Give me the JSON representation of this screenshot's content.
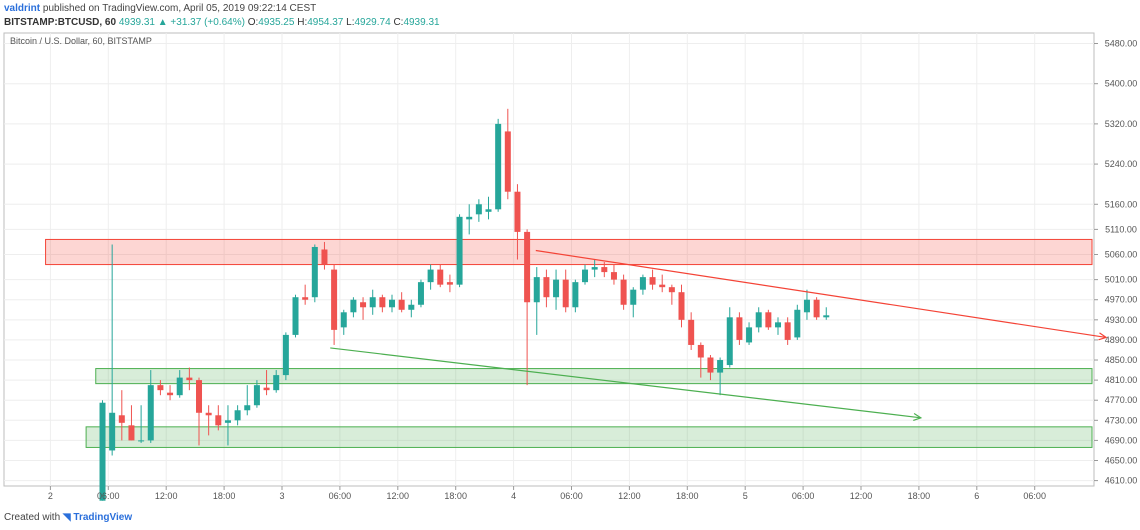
{
  "header": {
    "user": "valdrint",
    "published": "published on TradingView.com, April 05, 2019 09:22:14 CEST",
    "symbol": "BITSTAMP:BTCUSD, 60",
    "change": "4939.31 ▲ +31.37 (+0.64%)",
    "o_label": "O:",
    "o": "4935.25",
    "h_label": "H:",
    "h": "4954.37",
    "l_label": "L:",
    "l": "4929.74",
    "c_label": "C:",
    "c": "4939.31"
  },
  "footer": {
    "created": "Created with",
    "brand": "TradingView"
  },
  "colors": {
    "up": "#26a69a",
    "down": "#ef5350",
    "resistance": "#f44336",
    "support": "#4caf50"
  },
  "chart_data": {
    "type": "candlestick",
    "title": "Bitcoin / U.S. Dollar, 60, BITSTAMP",
    "ylim": [
      4570,
      5500
    ],
    "y_ticks": [
      5480,
      5400,
      5320,
      5240,
      5160,
      5110,
      5060,
      5010,
      4970,
      4930,
      4890,
      4850,
      4810,
      4770,
      4730,
      4690,
      4650,
      4610
    ],
    "y_tick_labels": [
      "5480.00",
      "5400.00",
      "5320.00",
      "5240.00",
      "5160.00",
      "5110.00",
      "5060.00",
      "5010.00",
      "4970.00",
      "4930.00",
      "4890.00",
      "4850.00",
      "4810.00",
      "4770.00",
      "4730.00",
      "4690.00",
      "4650.00",
      "4610.00"
    ],
    "x_ticks": [
      {
        "label": "2",
        "h": -24
      },
      {
        "label": "06:00",
        "h": -18
      },
      {
        "label": "12:00",
        "h": -12
      },
      {
        "label": "18:00",
        "h": -6
      },
      {
        "label": "3",
        "h": 0
      },
      {
        "label": "06:00",
        "h": 6
      },
      {
        "label": "12:00",
        "h": 12
      },
      {
        "label": "18:00",
        "h": 18
      },
      {
        "label": "4",
        "h": 24
      },
      {
        "label": "06:00",
        "h": 30
      },
      {
        "label": "12:00",
        "h": 36
      },
      {
        "label": "18:00",
        "h": 42
      },
      {
        "label": "5",
        "h": 48
      },
      {
        "label": "06:00",
        "h": 54
      },
      {
        "label": "12:00",
        "h": 60
      },
      {
        "label": "18:00",
        "h": 66
      },
      {
        "label": "6",
        "h": 72
      },
      {
        "label": "06:00",
        "h": 78
      }
    ],
    "candles": [
      {
        "h": -18.6,
        "o": 4570,
        "hi": 4770,
        "lo": 4570,
        "c": 4765
      },
      {
        "h": -17.6,
        "o": 4670,
        "hi": 5080,
        "lo": 4660,
        "c": 4745
      },
      {
        "h": -16.6,
        "o": 4740,
        "hi": 4790,
        "lo": 4690,
        "c": 4725
      },
      {
        "h": -15.6,
        "o": 4720,
        "hi": 4760,
        "lo": 4690,
        "c": 4690
      },
      {
        "h": -14.6,
        "o": 4690,
        "hi": 4760,
        "lo": 4685,
        "c": 4690
      },
      {
        "h": -13.6,
        "o": 4690,
        "hi": 4830,
        "lo": 4685,
        "c": 4800
      },
      {
        "h": -12.6,
        "o": 4800,
        "hi": 4810,
        "lo": 4780,
        "c": 4790
      },
      {
        "h": -11.6,
        "o": 4785,
        "hi": 4800,
        "lo": 4770,
        "c": 4780
      },
      {
        "h": -10.6,
        "o": 4780,
        "hi": 4830,
        "lo": 4775,
        "c": 4815
      },
      {
        "h": -9.6,
        "o": 4815,
        "hi": 4835,
        "lo": 4790,
        "c": 4810
      },
      {
        "h": -8.6,
        "o": 4810,
        "hi": 4815,
        "lo": 4680,
        "c": 4745
      },
      {
        "h": -7.6,
        "o": 4745,
        "hi": 4760,
        "lo": 4700,
        "c": 4740
      },
      {
        "h": -6.6,
        "o": 4740,
        "hi": 4760,
        "lo": 4710,
        "c": 4720
      },
      {
        "h": -5.6,
        "o": 4725,
        "hi": 4760,
        "lo": 4680,
        "c": 4730
      },
      {
        "h": -4.6,
        "o": 4730,
        "hi": 4760,
        "lo": 4720,
        "c": 4750
      },
      {
        "h": -3.6,
        "o": 4750,
        "hi": 4800,
        "lo": 4740,
        "c": 4760
      },
      {
        "h": -2.6,
        "o": 4760,
        "hi": 4810,
        "lo": 4755,
        "c": 4800
      },
      {
        "h": -1.6,
        "o": 4795,
        "hi": 4830,
        "lo": 4780,
        "c": 4790
      },
      {
        "h": -0.6,
        "o": 4790,
        "hi": 4830,
        "lo": 4785,
        "c": 4820
      },
      {
        "h": 0.4,
        "o": 4820,
        "hi": 4905,
        "lo": 4810,
        "c": 4900
      },
      {
        "h": 1.4,
        "o": 4900,
        "hi": 4980,
        "lo": 4895,
        "c": 4975
      },
      {
        "h": 2.4,
        "o": 4975,
        "hi": 5000,
        "lo": 4960,
        "c": 4970
      },
      {
        "h": 3.4,
        "o": 4975,
        "hi": 5080,
        "lo": 4965,
        "c": 5075
      },
      {
        "h": 4.4,
        "o": 5070,
        "hi": 5085,
        "lo": 5030,
        "c": 5040
      },
      {
        "h": 5.4,
        "o": 5030,
        "hi": 5040,
        "lo": 4880,
        "c": 4910
      },
      {
        "h": 6.4,
        "o": 4915,
        "hi": 4950,
        "lo": 4900,
        "c": 4945
      },
      {
        "h": 7.4,
        "o": 4945,
        "hi": 4975,
        "lo": 4935,
        "c": 4970
      },
      {
        "h": 8.4,
        "o": 4965,
        "hi": 4975,
        "lo": 4930,
        "c": 4955
      },
      {
        "h": 9.4,
        "o": 4955,
        "hi": 4990,
        "lo": 4940,
        "c": 4975
      },
      {
        "h": 10.4,
        "o": 4975,
        "hi": 4980,
        "lo": 4945,
        "c": 4955
      },
      {
        "h": 11.4,
        "o": 4955,
        "hi": 4980,
        "lo": 4945,
        "c": 4970
      },
      {
        "h": 12.4,
        "o": 4970,
        "hi": 4985,
        "lo": 4945,
        "c": 4950
      },
      {
        "h": 13.4,
        "o": 4950,
        "hi": 4970,
        "lo": 4935,
        "c": 4960
      },
      {
        "h": 14.4,
        "o": 4960,
        "hi": 5010,
        "lo": 4955,
        "c": 5005
      },
      {
        "h": 15.4,
        "o": 5005,
        "hi": 5040,
        "lo": 4990,
        "c": 5030
      },
      {
        "h": 16.4,
        "o": 5030,
        "hi": 5040,
        "lo": 4995,
        "c": 5000
      },
      {
        "h": 17.4,
        "o": 5005,
        "hi": 5020,
        "lo": 4985,
        "c": 5000
      },
      {
        "h": 18.4,
        "o": 5000,
        "hi": 5140,
        "lo": 4995,
        "c": 5135
      },
      {
        "h": 19.4,
        "o": 5130,
        "hi": 5160,
        "lo": 5100,
        "c": 5135
      },
      {
        "h": 20.4,
        "o": 5140,
        "hi": 5170,
        "lo": 5125,
        "c": 5160
      },
      {
        "h": 21.4,
        "o": 5145,
        "hi": 5175,
        "lo": 5130,
        "c": 5150
      },
      {
        "h": 22.4,
        "o": 5150,
        "hi": 5330,
        "lo": 5145,
        "c": 5320
      },
      {
        "h": 23.4,
        "o": 5305,
        "hi": 5350,
        "lo": 5170,
        "c": 5185
      },
      {
        "h": 24.4,
        "o": 5185,
        "hi": 5200,
        "lo": 5050,
        "c": 5105
      },
      {
        "h": 25.4,
        "o": 5105,
        "hi": 5110,
        "lo": 4800,
        "c": 4965
      },
      {
        "h": 26.4,
        "o": 4965,
        "hi": 5035,
        "lo": 4900,
        "c": 5015
      },
      {
        "h": 27.4,
        "o": 5015,
        "hi": 5030,
        "lo": 4955,
        "c": 4975
      },
      {
        "h": 28.4,
        "o": 4975,
        "hi": 5030,
        "lo": 4950,
        "c": 5010
      },
      {
        "h": 29.4,
        "o": 5010,
        "hi": 5030,
        "lo": 4945,
        "c": 4955
      },
      {
        "h": 30.4,
        "o": 4955,
        "hi": 5010,
        "lo": 4945,
        "c": 5005
      },
      {
        "h": 31.4,
        "o": 5005,
        "hi": 5040,
        "lo": 5000,
        "c": 5030
      },
      {
        "h": 32.4,
        "o": 5030,
        "hi": 5050,
        "lo": 5015,
        "c": 5035
      },
      {
        "h": 33.4,
        "o": 5035,
        "hi": 5045,
        "lo": 5015,
        "c": 5025
      },
      {
        "h": 34.4,
        "o": 5025,
        "hi": 5040,
        "lo": 5000,
        "c": 5010
      },
      {
        "h": 35.4,
        "o": 5010,
        "hi": 5020,
        "lo": 4950,
        "c": 4960
      },
      {
        "h": 36.4,
        "o": 4960,
        "hi": 4995,
        "lo": 4935,
        "c": 4990
      },
      {
        "h": 37.4,
        "o": 4990,
        "hi": 5020,
        "lo": 4980,
        "c": 5015
      },
      {
        "h": 38.4,
        "o": 5015,
        "hi": 5030,
        "lo": 4990,
        "c": 5000
      },
      {
        "h": 39.4,
        "o": 5000,
        "hi": 5020,
        "lo": 4985,
        "c": 4995
      },
      {
        "h": 40.4,
        "o": 4995,
        "hi": 5000,
        "lo": 4960,
        "c": 4985
      },
      {
        "h": 41.4,
        "o": 4985,
        "hi": 5000,
        "lo": 4915,
        "c": 4930
      },
      {
        "h": 42.4,
        "o": 4930,
        "hi": 4945,
        "lo": 4870,
        "c": 4880
      },
      {
        "h": 43.4,
        "o": 4880,
        "hi": 4885,
        "lo": 4815,
        "c": 4855
      },
      {
        "h": 44.4,
        "o": 4855,
        "hi": 4860,
        "lo": 4810,
        "c": 4825
      },
      {
        "h": 45.4,
        "o": 4825,
        "hi": 4855,
        "lo": 4780,
        "c": 4850
      },
      {
        "h": 46.4,
        "o": 4840,
        "hi": 4955,
        "lo": 4835,
        "c": 4935
      },
      {
        "h": 47.4,
        "o": 4935,
        "hi": 4945,
        "lo": 4880,
        "c": 4890
      },
      {
        "h": 48.4,
        "o": 4885,
        "hi": 4925,
        "lo": 4880,
        "c": 4915
      },
      {
        "h": 49.4,
        "o": 4915,
        "hi": 4955,
        "lo": 4905,
        "c": 4945
      },
      {
        "h": 50.4,
        "o": 4945,
        "hi": 4950,
        "lo": 4910,
        "c": 4915
      },
      {
        "h": 51.4,
        "o": 4915,
        "hi": 4935,
        "lo": 4900,
        "c": 4925
      },
      {
        "h": 52.4,
        "o": 4925,
        "hi": 4935,
        "lo": 4880,
        "c": 4890
      },
      {
        "h": 53.4,
        "o": 4895,
        "hi": 4960,
        "lo": 4890,
        "c": 4950
      },
      {
        "h": 54.4,
        "o": 4945,
        "hi": 4990,
        "lo": 4930,
        "c": 4970
      },
      {
        "h": 55.4,
        "o": 4970,
        "hi": 4975,
        "lo": 4930,
        "c": 4935
      },
      {
        "h": 56.4,
        "o": 4935,
        "hi": 4955,
        "lo": 4930,
        "c": 4939
      }
    ],
    "zones": [
      {
        "kind": "resistance",
        "from": 5040,
        "to": 5090,
        "h_start": -24.5,
        "h_end": 88
      },
      {
        "kind": "support",
        "from": 4803,
        "to": 4833,
        "h_start": -19.3,
        "h_end": 88
      },
      {
        "kind": "support",
        "from": 4676,
        "to": 4717,
        "h_start": -20.3,
        "h_end": 88
      }
    ],
    "trend_lines": [
      {
        "kind": "resistance",
        "arrow": true,
        "h1": 26.3,
        "p1": 5068,
        "h2": 85.4,
        "p2": 4895
      },
      {
        "kind": "support",
        "arrow": true,
        "h1": 5.0,
        "p1": 4874,
        "h2": 66.2,
        "p2": 4735
      }
    ]
  }
}
